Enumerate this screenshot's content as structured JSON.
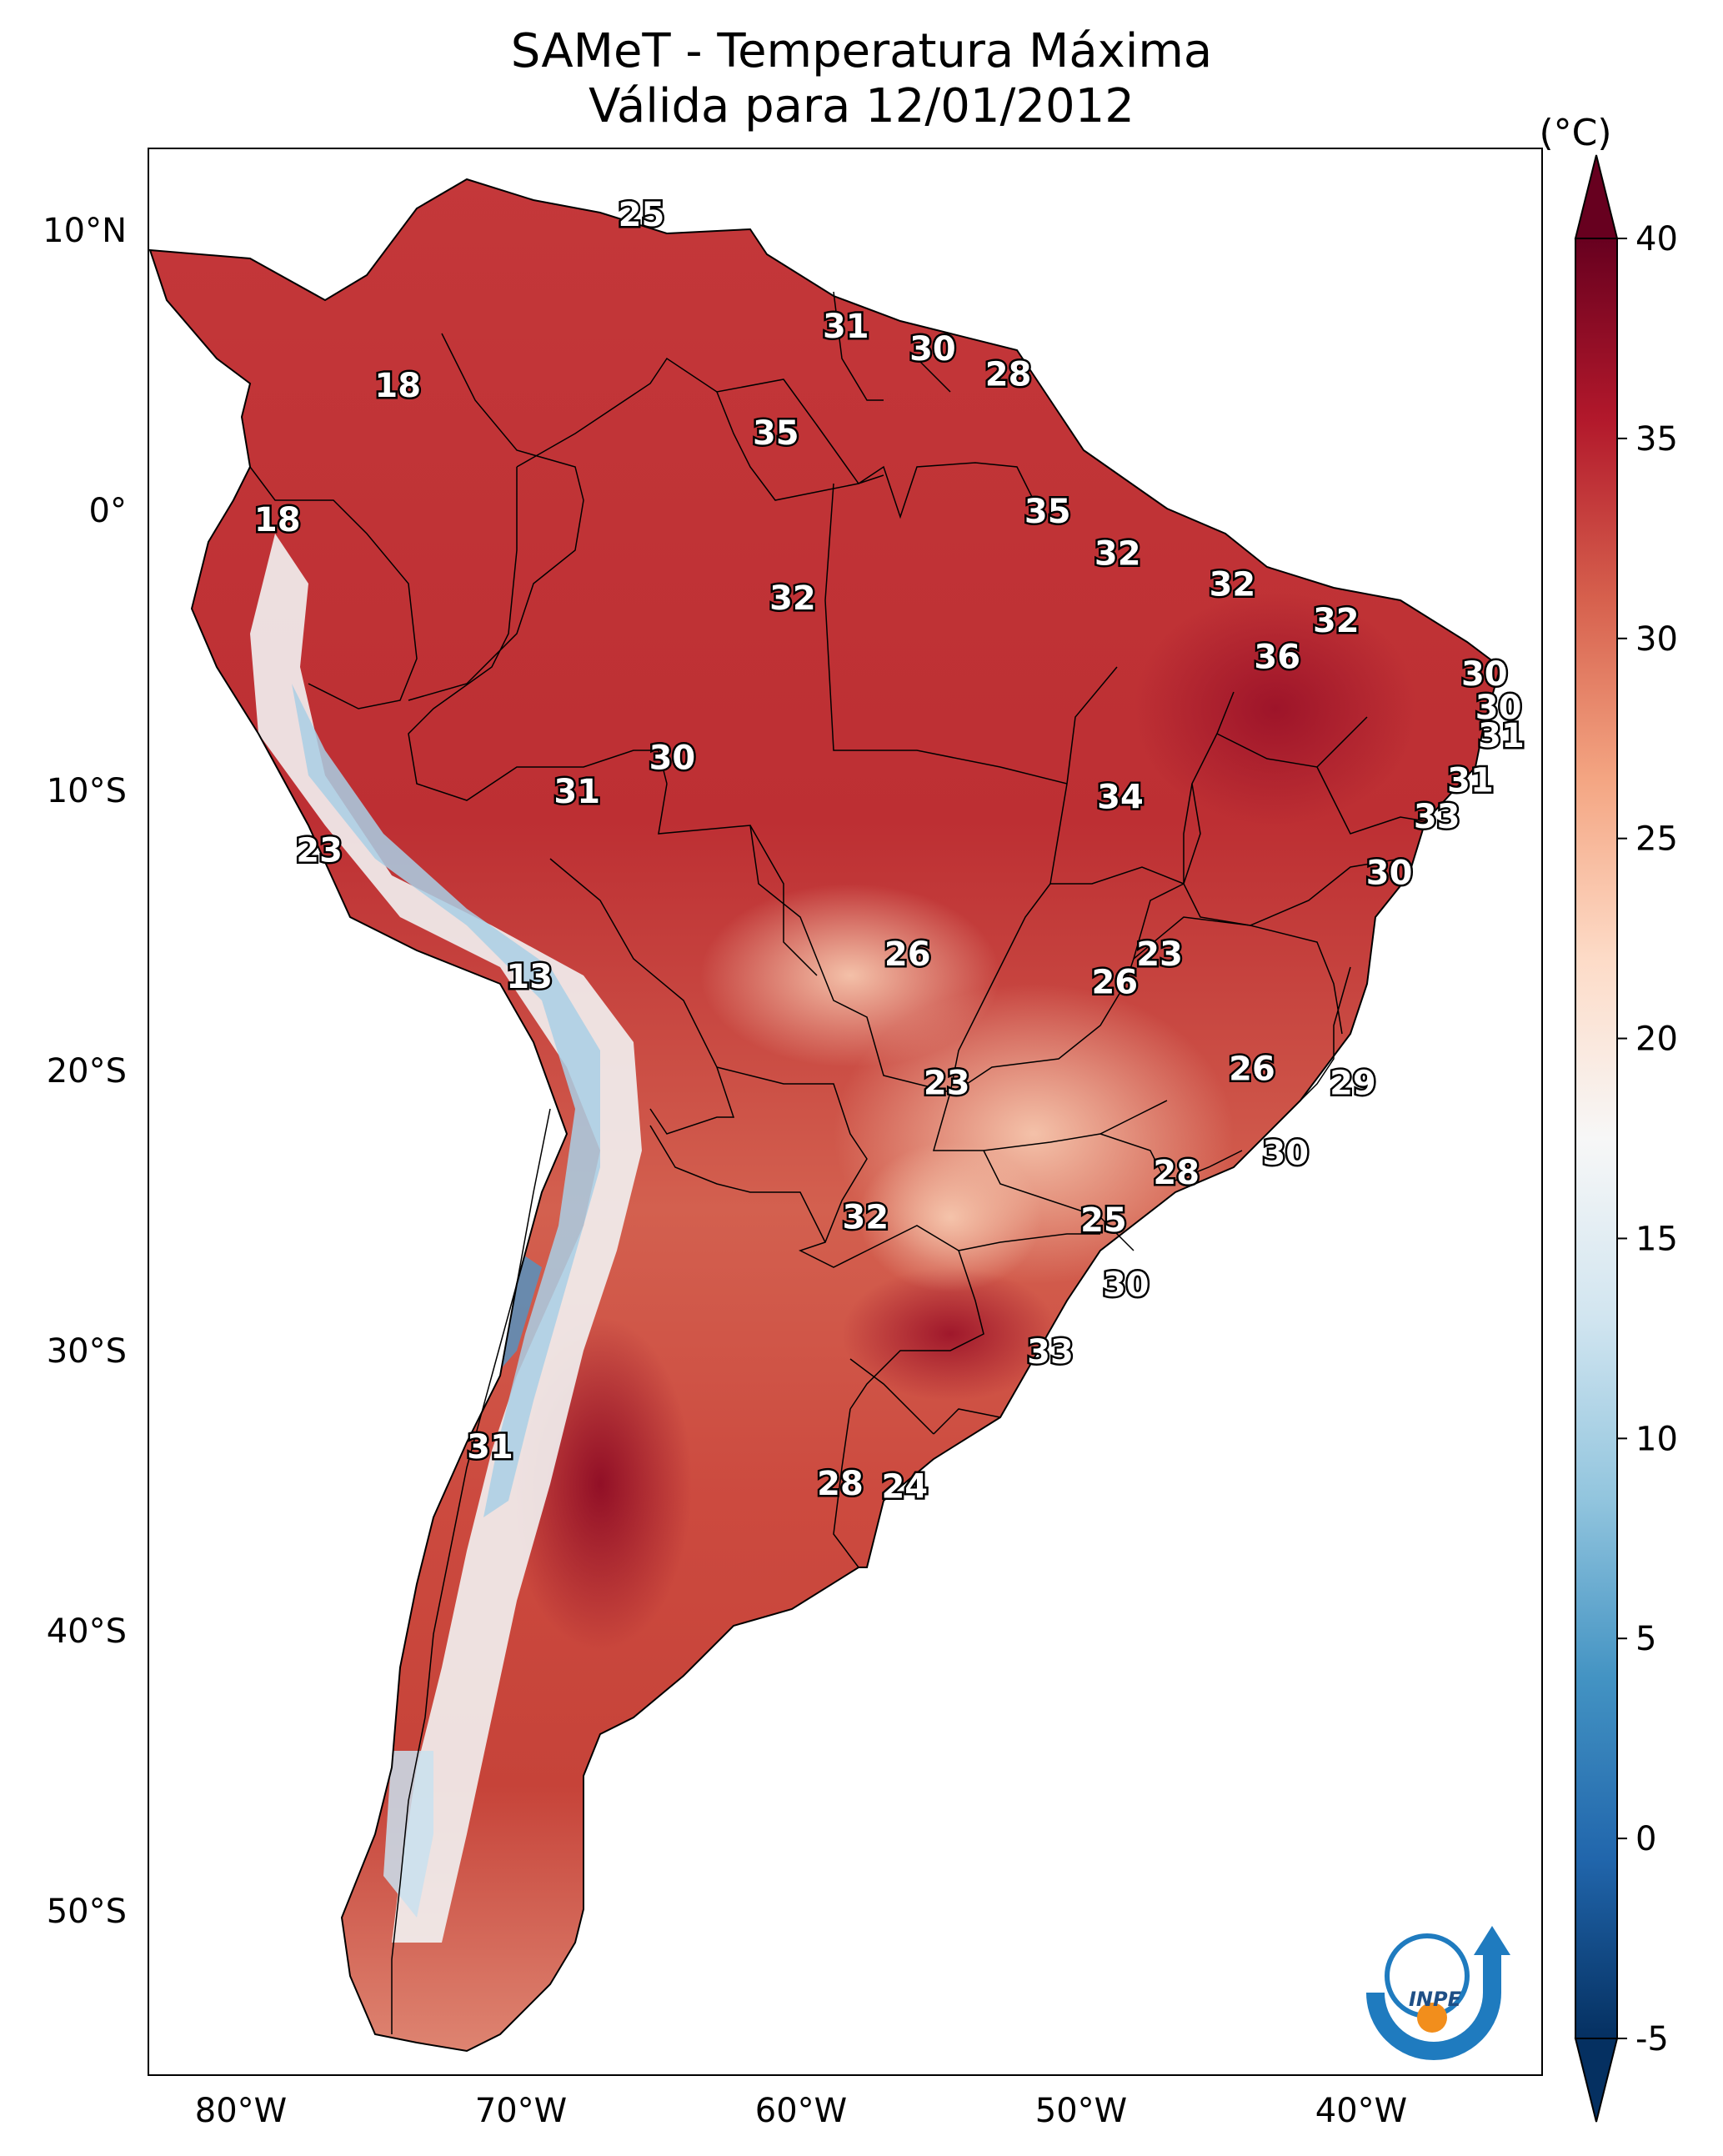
{
  "title": {
    "line1": "SAMeT - Temperatura Máxima",
    "line2": "Válida para 12/01/2012"
  },
  "colorbar": {
    "units": "(°C)",
    "ticks": [
      "40",
      "35",
      "30",
      "25",
      "20",
      "15",
      "10",
      "5",
      "0",
      "-5"
    ],
    "colors": [
      "#67001f",
      "#b2182b",
      "#d6604d",
      "#f4a582",
      "#fddbc7",
      "#f7f7f7",
      "#d1e5f0",
      "#92c5de",
      "#4393c3",
      "#2166ac",
      "#053061"
    ]
  },
  "axes": {
    "lat_ticks": [
      "10°N",
      "0°",
      "10°S",
      "20°S",
      "30°S",
      "40°S",
      "50°S"
    ],
    "lon_ticks": [
      "80°W",
      "70°W",
      "60°W",
      "50°W",
      "40°W"
    ]
  },
  "contour_labels": [
    {
      "text": "25",
      "lon": -65.7,
      "lat": 10.6
    },
    {
      "text": "18",
      "lon": -74.4,
      "lat": 4.5
    },
    {
      "text": "31",
      "lon": -58.4,
      "lat": 6.6
    },
    {
      "text": "30",
      "lon": -55.3,
      "lat": 5.8
    },
    {
      "text": "28",
      "lon": -52.6,
      "lat": 4.9
    },
    {
      "text": "35",
      "lon": -60.9,
      "lat": 2.8
    },
    {
      "text": "18",
      "lon": -78.7,
      "lat": -0.3
    },
    {
      "text": "35",
      "lon": -51.2,
      "lat": 0.0
    },
    {
      "text": "32",
      "lon": -48.7,
      "lat": -1.5
    },
    {
      "text": "32",
      "lon": -60.3,
      "lat": -3.1
    },
    {
      "text": "32",
      "lon": -44.6,
      "lat": -2.6
    },
    {
      "text": "32",
      "lon": -40.9,
      "lat": -3.9
    },
    {
      "text": "36",
      "lon": -43.0,
      "lat": -5.2
    },
    {
      "text": "30",
      "lon": -35.6,
      "lat": -5.8
    },
    {
      "text": "30",
      "lon": -35.1,
      "lat": -7.0
    },
    {
      "text": "31",
      "lon": -35.0,
      "lat": -8.0
    },
    {
      "text": "30",
      "lon": -64.6,
      "lat": -8.8
    },
    {
      "text": "31",
      "lon": -68.0,
      "lat": -10.0
    },
    {
      "text": "34",
      "lon": -48.6,
      "lat": -10.2
    },
    {
      "text": "31",
      "lon": -36.1,
      "lat": -9.6
    },
    {
      "text": "33",
      "lon": -37.3,
      "lat": -10.9
    },
    {
      "text": "23",
      "lon": -77.2,
      "lat": -12.1
    },
    {
      "text": "30",
      "lon": -39.0,
      "lat": -12.9
    },
    {
      "text": "26",
      "lon": -56.2,
      "lat": -15.8
    },
    {
      "text": "23",
      "lon": -47.2,
      "lat": -15.8
    },
    {
      "text": "26",
      "lon": -48.8,
      "lat": -16.8
    },
    {
      "text": "13",
      "lon": -69.7,
      "lat": -16.6
    },
    {
      "text": "26",
      "lon": -43.9,
      "lat": -19.9
    },
    {
      "text": "23",
      "lon": -54.8,
      "lat": -20.4
    },
    {
      "text": "29",
      "lon": -40.3,
      "lat": -20.4
    },
    {
      "text": "30",
      "lon": -42.7,
      "lat": -22.9
    },
    {
      "text": "28",
      "lon": -46.6,
      "lat": -23.6
    },
    {
      "text": "32",
      "lon": -57.7,
      "lat": -25.2
    },
    {
      "text": "25",
      "lon": -49.2,
      "lat": -25.3
    },
    {
      "text": "30",
      "lon": -48.4,
      "lat": -27.6
    },
    {
      "text": "33",
      "lon": -51.1,
      "lat": -30.0
    },
    {
      "text": "31",
      "lon": -71.1,
      "lat": -33.4
    },
    {
      "text": "28",
      "lon": -58.6,
      "lat": -34.7
    },
    {
      "text": "24",
      "lon": -56.3,
      "lat": -34.8
    }
  ],
  "logo": {
    "text": "INPE"
  }
}
